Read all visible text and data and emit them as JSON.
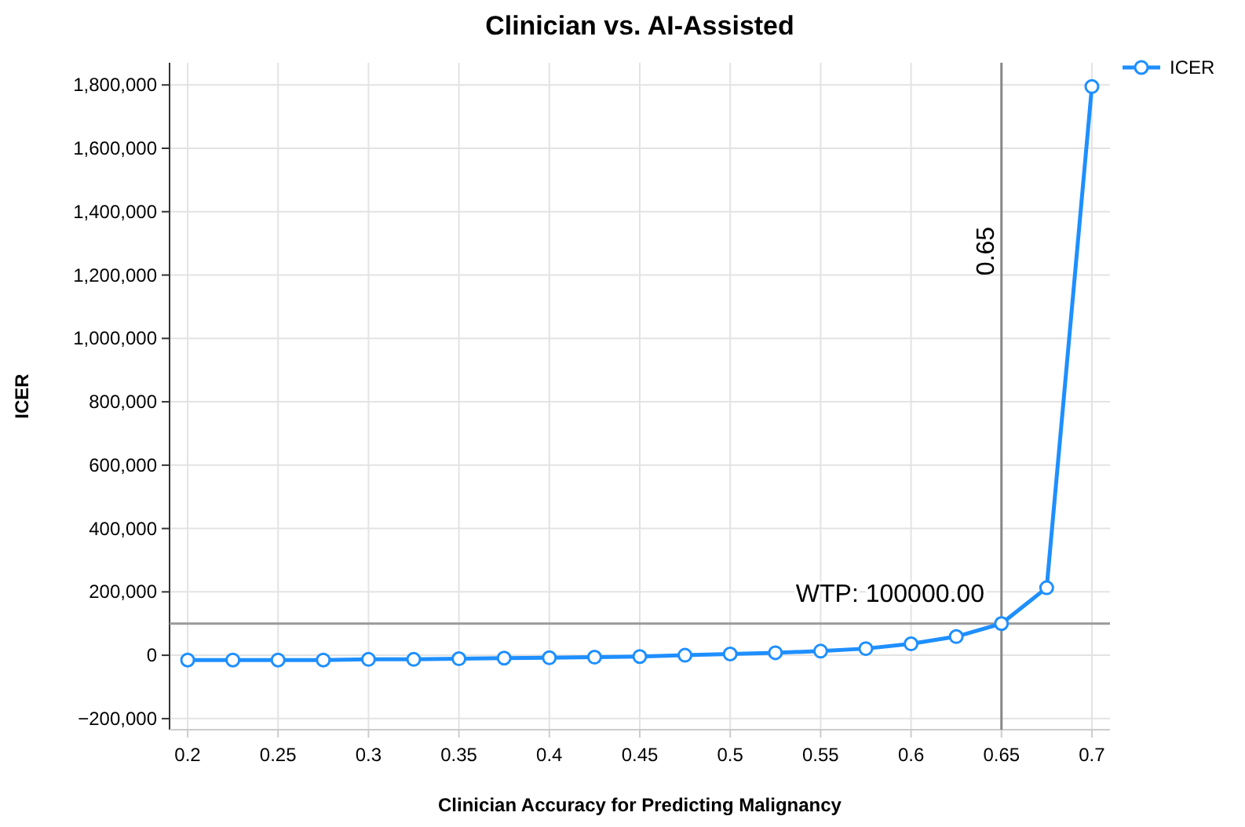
{
  "chart_data": {
    "type": "line",
    "title": "Clinician vs. AI-Assisted",
    "xlabel": "Clinician Accuracy for Predicting Malignancy",
    "ylabel": "ICER",
    "x": [
      0.2,
      0.225,
      0.25,
      0.275,
      0.3,
      0.325,
      0.35,
      0.375,
      0.4,
      0.425,
      0.45,
      0.475,
      0.5,
      0.525,
      0.55,
      0.575,
      0.6,
      0.625,
      0.65,
      0.675,
      0.7
    ],
    "series": [
      {
        "name": "ICER",
        "color": "#1e8fff",
        "values": [
          -15000,
          -15000,
          -15000,
          -15000,
          -13000,
          -13000,
          -11000,
          -9000,
          -8000,
          -6000,
          -4000,
          0,
          4000,
          8000,
          13000,
          21000,
          36000,
          59000,
          100000,
          213000,
          1795000
        ]
      }
    ],
    "xlim": [
      0.19,
      0.71
    ],
    "xticks": [
      0.2,
      0.25,
      0.3,
      0.35,
      0.4,
      0.45,
      0.5,
      0.55,
      0.6,
      0.65,
      0.7
    ],
    "ylim": [
      -235000,
      1870000
    ],
    "yticks": [
      {
        "value": -200000,
        "label": "−200,000"
      },
      0,
      {
        "value": 200000,
        "label": "200,000"
      },
      {
        "value": 400000,
        "label": "400,000"
      },
      {
        "value": 600000,
        "label": "600,000"
      },
      {
        "value": 800000,
        "label": "800,000"
      },
      {
        "value": 1000000,
        "label": "1,000,000"
      },
      {
        "value": 1200000,
        "label": "1,200,000"
      },
      {
        "value": 1400000,
        "label": "1,400,000"
      },
      {
        "value": 1600000,
        "label": "1,600,000"
      },
      {
        "value": 1800000,
        "label": "1,800,000"
      }
    ],
    "ref_lines": [
      {
        "axis": "x",
        "value": 0.65,
        "label": "0.65",
        "color": "#888888"
      },
      {
        "axis": "y",
        "value": 100000,
        "label": "WTP: 100000.00",
        "color": "#999999"
      }
    ],
    "grid": true,
    "legend": "top right",
    "marker": "circle",
    "line_style": "solid"
  }
}
